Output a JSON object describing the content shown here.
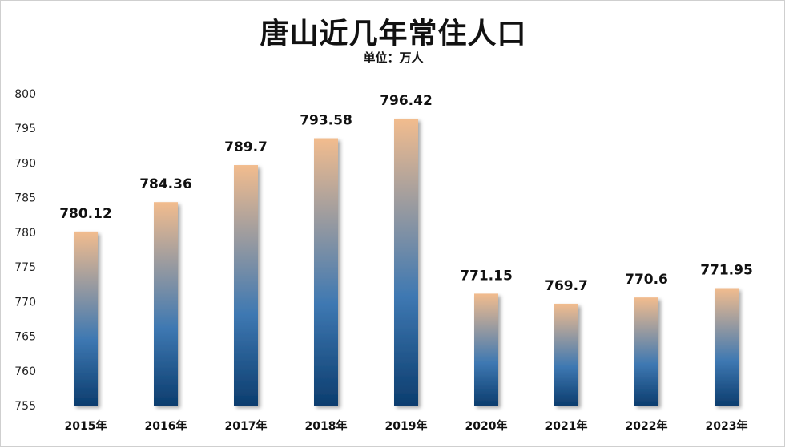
{
  "chart_data": {
    "type": "bar",
    "title": "唐山近几年常住人口",
    "subtitle": "单位：万人",
    "categories": [
      "2015年",
      "2016年",
      "2017年",
      "2018年",
      "2019年",
      "2020年",
      "2021年",
      "2022年",
      "2023年"
    ],
    "values": [
      780.12,
      784.36,
      789.7,
      793.58,
      796.42,
      771.15,
      769.7,
      770.6,
      771.95
    ],
    "data_labels": [
      "780.12",
      "784.36",
      "789.7",
      "793.58",
      "796.42",
      "771.15",
      "769.7",
      "770.6",
      "771.95"
    ],
    "yticks": [
      755,
      760,
      765,
      770,
      775,
      780,
      785,
      790,
      795,
      800
    ],
    "ylim": [
      755,
      800
    ],
    "grid": false,
    "legend": "none",
    "colors": {
      "bar_top": "#f2bc8e",
      "bar_mid": "#3e78b2",
      "bar_bottom": "#0c3d6e"
    }
  }
}
